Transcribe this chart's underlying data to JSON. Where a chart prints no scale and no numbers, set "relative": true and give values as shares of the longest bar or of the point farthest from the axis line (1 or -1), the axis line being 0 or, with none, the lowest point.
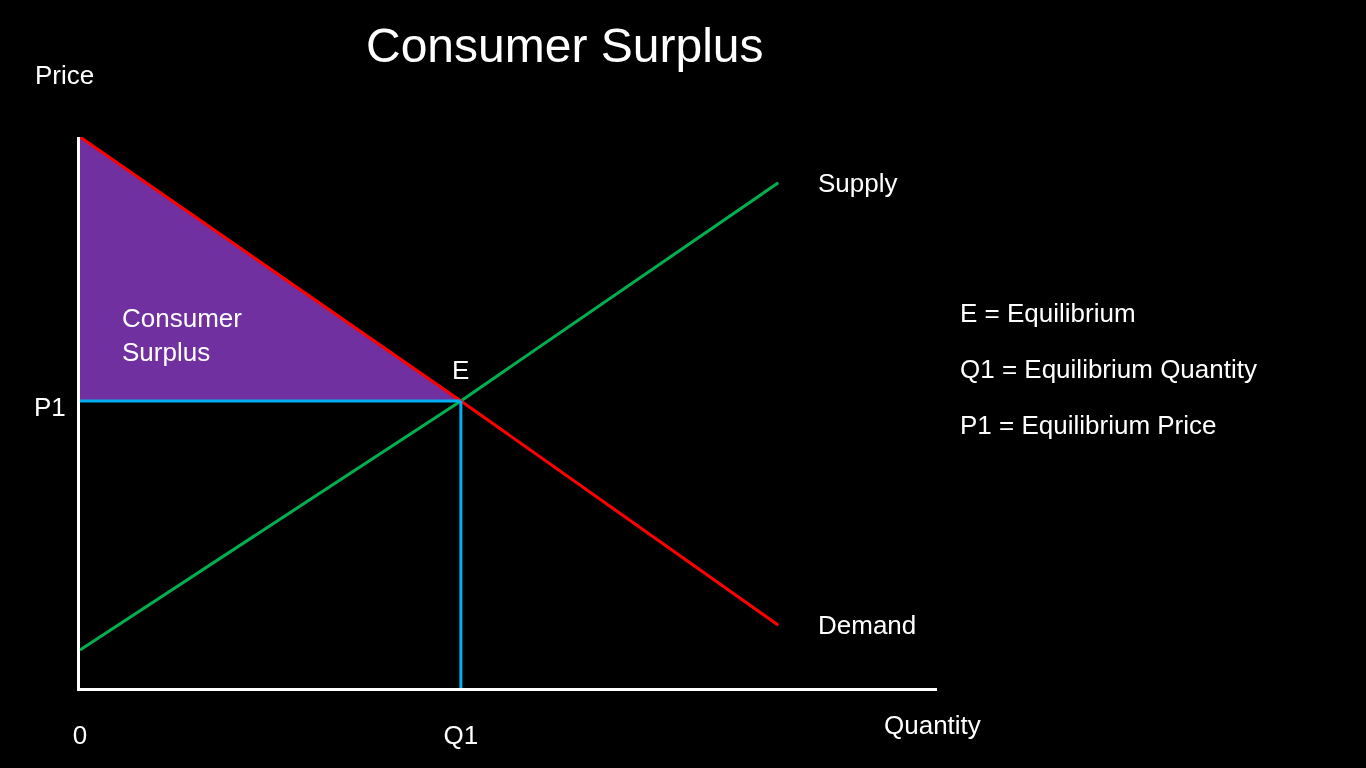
{
  "chart_data": {
    "type": "line",
    "relative": true,
    "title": "Consumer Surplus",
    "xlabel": "Quantity",
    "ylabel": "Price",
    "categories": [
      "0",
      null,
      null,
      null,
      null,
      null,
      "Q1",
      null,
      null,
      null,
      null,
      null,
      null,
      null
    ],
    "series": [
      {
        "name": "Consumer Surplus",
        "type": "area",
        "color": "#7030a0",
        "values": [
          1,
          null,
          null,
          null,
          null,
          null,
          0.521,
          null,
          null,
          null,
          null,
          null,
          null,
          null
        ]
      },
      {
        "name": "Supply",
        "color": "#00b050",
        "values": [
          0.069,
          null,
          null,
          null,
          null,
          null,
          0.521,
          null,
          null,
          null,
          null,
          0.917,
          null,
          null
        ]
      },
      {
        "name": "Demand",
        "color": "#ff0000",
        "values": [
          1,
          null,
          null,
          null,
          null,
          null,
          0.521,
          null,
          null,
          null,
          null,
          0.114,
          null,
          null
        ]
      }
    ],
    "ref_lines": [
      {
        "axis": "y",
        "value": 0.521,
        "label": "P1",
        "color": "#00b0f0"
      },
      {
        "axis": "x",
        "value": "Q1",
        "color": "#00b0f0"
      }
    ],
    "annotations": [
      {
        "text": "E",
        "x": "Q1",
        "y": 0.521
      },
      "E = Equilibrium",
      "Q1 = Equilibrium Quantity",
      "P1 = Equilibrium Price"
    ]
  }
}
